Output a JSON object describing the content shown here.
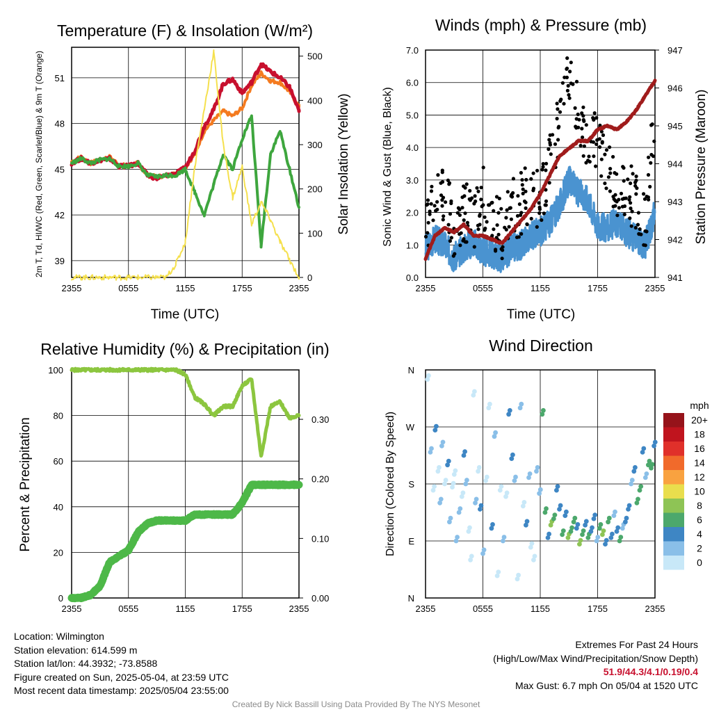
{
  "colors": {
    "temp_red": "#c8102e",
    "temp_orange": "#f47b20",
    "hiwc_green": "#3ea63e",
    "solar_yellow": "#f5e04d",
    "pressure_maroon": "#a01c1c",
    "sonic_blue": "#4a93d0",
    "gust_black": "#000000",
    "rh_green": "#8cc63f",
    "precip_green": "#4db848"
  },
  "chart_data": [
    {
      "type": "line",
      "title": "Temperature (F) & Insolation (W/m²)",
      "xlabel": "Time (UTC)",
      "ylabel": "2m T, Td, HI/WC (Red, Green, Scarlet/Blue) & 9m T (Orange)",
      "ylabel_right": "Solar Insolation (Yellow)",
      "x_ticks": [
        "2355",
        "0555",
        "1155",
        "1755",
        "2355"
      ],
      "y_ticks": [
        39,
        42,
        45,
        48,
        51
      ],
      "y2_ticks": [
        0,
        100,
        200,
        300,
        400,
        500
      ],
      "ylim": [
        37.9,
        53.0
      ],
      "y2lim": [
        0,
        520
      ],
      "xlim": [
        0,
        24
      ],
      "series": [
        {
          "axis": "left",
          "color": "#f47b20",
          "x": [
            0,
            1,
            2,
            3,
            4,
            5,
            6,
            7,
            8,
            9,
            10,
            11,
            12,
            13,
            14,
            15,
            16,
            17,
            18,
            19,
            20,
            21,
            22,
            23,
            24
          ],
          "values": [
            45.5,
            45.8,
            45.4,
            45.6,
            45.8,
            45.3,
            45.2,
            45.4,
            44.6,
            44.5,
            44.6,
            44.7,
            45.1,
            46.0,
            47.5,
            48.2,
            48.8,
            48.5,
            49.0,
            50.5,
            51.3,
            50.8,
            50.7,
            50.1,
            49.1
          ]
        },
        {
          "axis": "left",
          "color": "#c8102e",
          "x": [
            0,
            1,
            2,
            3,
            4,
            5,
            6,
            7,
            8,
            9,
            10,
            11,
            12,
            13,
            14,
            15,
            16,
            17,
            18,
            19,
            20,
            21,
            22,
            23,
            24
          ],
          "values": [
            45.4,
            45.7,
            45.4,
            45.6,
            45.7,
            45.2,
            45.2,
            45.4,
            44.6,
            44.4,
            44.6,
            44.7,
            45.1,
            46.2,
            47.8,
            48.9,
            50.6,
            50.9,
            50.0,
            50.7,
            51.9,
            51.4,
            51.0,
            50.4,
            48.8
          ]
        },
        {
          "axis": "left",
          "color": "#3ea63e",
          "x": [
            0,
            1,
            2,
            3,
            4,
            5,
            6,
            7,
            8,
            9,
            10,
            11,
            12,
            13,
            14,
            15,
            16,
            17,
            18,
            19,
            20,
            21,
            22,
            23,
            24
          ],
          "values": [
            45.4,
            45.7,
            45.4,
            45.6,
            45.7,
            45.2,
            45.2,
            45.4,
            44.6,
            44.5,
            44.6,
            44.6,
            45.0,
            43.5,
            42.0,
            44.0,
            46.0,
            45.0,
            47.0,
            48.5,
            40.0,
            46.0,
            47.5,
            45.0,
            42.5
          ]
        },
        {
          "axis": "right",
          "color": "#f5e04d",
          "x": [
            0,
            1,
            2,
            3,
            4,
            5,
            6,
            7,
            8,
            9,
            10,
            11,
            12,
            13,
            14,
            15,
            16,
            17,
            18,
            19,
            20,
            21,
            22,
            23,
            24
          ],
          "values": [
            0,
            0,
            0,
            0,
            0,
            0,
            0,
            0,
            0,
            0,
            0,
            30,
            80,
            250,
            380,
            510,
            300,
            180,
            250,
            120,
            170,
            130,
            80,
            40,
            0
          ]
        }
      ]
    },
    {
      "type": "line",
      "title": "Winds (mph) & Pressure (mb)",
      "xlabel": "Time (UTC)",
      "ylabel": "Sonic Wind & Gust (Blue, Black)",
      "ylabel_right": "Station Pressure (Maroon)",
      "x_ticks": [
        "2355",
        "0555",
        "1155",
        "1755",
        "2355"
      ],
      "y_ticks": [
        "0.0",
        "1.0",
        "2.0",
        "3.0",
        "4.0",
        "5.0",
        "6.0",
        "7.0"
      ],
      "y2_ticks": [
        941,
        942,
        943,
        944,
        945,
        946,
        947
      ],
      "ylim": [
        0,
        7
      ],
      "y2lim": [
        941,
        947
      ],
      "xlim": [
        0,
        24
      ],
      "series": [
        {
          "axis": "left",
          "color": "#4a93d0",
          "kind": "line",
          "x": [
            0,
            1,
            2,
            3,
            4,
            5,
            6,
            7,
            8,
            9,
            10,
            11,
            12,
            13,
            14,
            15,
            16,
            17,
            18,
            19,
            20,
            21,
            22,
            23,
            24
          ],
          "values": [
            0.9,
            1.2,
            1.0,
            0.6,
            0.9,
            1.1,
            0.8,
            0.7,
            0.6,
            0.9,
            1.0,
            1.3,
            1.4,
            1.7,
            2.2,
            3.0,
            2.6,
            2.4,
            1.6,
            1.5,
            1.7,
            1.4,
            1.2,
            1.0,
            2.0
          ]
        },
        {
          "axis": "left",
          "color": "#000000",
          "kind": "scatter",
          "x": [
            0,
            1,
            2,
            3,
            4,
            5,
            6,
            7,
            8,
            9,
            10,
            11,
            12,
            13,
            14,
            15,
            16,
            17,
            18,
            19,
            20,
            21,
            22,
            23,
            24
          ],
          "values": [
            1.6,
            2.2,
            2.8,
            1.5,
            2.0,
            1.7,
            2.5,
            1.8,
            1.4,
            2.0,
            2.3,
            2.8,
            2.4,
            3.5,
            4.8,
            6.6,
            4.9,
            4.4,
            4.0,
            3.6,
            2.5,
            2.8,
            2.3,
            1.8,
            4.9
          ]
        },
        {
          "axis": "right",
          "color": "#a01c1c",
          "kind": "line",
          "x": [
            0,
            1,
            2,
            3,
            4,
            5,
            6,
            7,
            8,
            9,
            10,
            11,
            12,
            13,
            14,
            15,
            16,
            17,
            18,
            19,
            20,
            21,
            22,
            23,
            24
          ],
          "values": [
            941.5,
            942.1,
            942.3,
            942.2,
            942.4,
            942.1,
            942.1,
            942.0,
            941.9,
            942.2,
            942.5,
            942.8,
            943.2,
            943.7,
            944.2,
            944.4,
            944.6,
            944.6,
            944.9,
            945.0,
            944.9,
            945.1,
            945.4,
            945.8,
            946.2
          ]
        }
      ]
    },
    {
      "type": "line",
      "title": "Relative Humidity (%) & Precipitation (in)",
      "xlabel": "",
      "ylabel": "Percent & Precipitation",
      "x_ticks": [
        "2355",
        "0555",
        "1155",
        "1755",
        "2355"
      ],
      "y_ticks": [
        0,
        20,
        40,
        60,
        80,
        100
      ],
      "y2_ticks": [
        "0.00",
        "0.10",
        "0.20",
        "0.30"
      ],
      "ylim": [
        0,
        100
      ],
      "y2lim": [
        0,
        0.383
      ],
      "xlim": [
        0,
        24
      ],
      "series": [
        {
          "axis": "left",
          "color": "#8cc63f",
          "x": [
            0,
            1,
            2,
            3,
            4,
            5,
            6,
            7,
            8,
            9,
            10,
            11,
            12,
            13,
            14,
            15,
            16,
            17,
            18,
            19,
            20,
            21,
            22,
            23,
            24
          ],
          "values": [
            100,
            100,
            100,
            100,
            100,
            100,
            100,
            100,
            100,
            100,
            100,
            100,
            98,
            88,
            85,
            80,
            84,
            84,
            93,
            96,
            62,
            84,
            86,
            79,
            80
          ]
        },
        {
          "axis": "right",
          "color": "#4db848",
          "x": [
            0,
            1,
            2,
            3,
            4,
            5,
            6,
            7,
            8,
            9,
            10,
            11,
            12,
            13,
            14,
            15,
            16,
            17,
            18,
            19,
            20,
            21,
            22,
            23,
            24
          ],
          "values": [
            0,
            0,
            0.005,
            0.02,
            0.06,
            0.07,
            0.08,
            0.11,
            0.125,
            0.13,
            0.13,
            0.13,
            0.13,
            0.14,
            0.14,
            0.14,
            0.14,
            0.14,
            0.16,
            0.19,
            0.19,
            0.19,
            0.19,
            0.19,
            0.19
          ]
        }
      ]
    },
    {
      "type": "scatter",
      "title": "Wind Direction",
      "xlabel": "",
      "ylabel": "Direction (Colored By Speed)",
      "x_ticks": [
        "2355",
        "0555",
        "1155",
        "1755",
        "2355"
      ],
      "y_ticks": [
        "N",
        "E",
        "S",
        "W",
        "N"
      ],
      "xlim": [
        0,
        24
      ],
      "ylim": [
        0,
        360
      ],
      "legend": {
        "title": "mph",
        "labels": [
          "20+",
          "18",
          "16",
          "14",
          "12",
          "10",
          "8",
          "6",
          "4",
          "2",
          "0"
        ],
        "colors": [
          "#96131a",
          "#c0141e",
          "#e0302a",
          "#f16a2b",
          "#f9a240",
          "#e9de4d",
          "#8ec455",
          "#4ca86c",
          "#3e86c4",
          "#8abfe8",
          "#c8e8f8"
        ]
      },
      "points": {
        "x": [
          0.2,
          0.5,
          0.8,
          1.0,
          1.3,
          1.5,
          1.7,
          2.0,
          2.3,
          2.5,
          2.8,
          3.0,
          3.2,
          3.5,
          3.8,
          4.0,
          4.2,
          4.5,
          4.7,
          5.0,
          5.2,
          5.5,
          5.7,
          6.0,
          6.3,
          6.6,
          6.9,
          7.2,
          7.5,
          7.8,
          8.1,
          8.4,
          8.7,
          9.0,
          9.3,
          9.6,
          9.9,
          10.2,
          10.5,
          10.8,
          11.0,
          11.3,
          11.6,
          11.9,
          12.2,
          12.5,
          12.8,
          13.1,
          13.4,
          13.7,
          14.0,
          14.3,
          14.6,
          14.9,
          15.2,
          15.5,
          15.8,
          16.1,
          16.4,
          16.7,
          17.0,
          17.3,
          17.6,
          17.9,
          18.2,
          18.5,
          18.8,
          19.1,
          19.4,
          19.7,
          20.0,
          20.3,
          20.6,
          20.9,
          21.2,
          21.5,
          21.8,
          22.1,
          22.4,
          22.7,
          23.0,
          23.3,
          23.6,
          23.9
        ],
        "dir": [
          345,
          230,
          170,
          265,
          200,
          150,
          240,
          180,
          210,
          120,
          175,
          195,
          90,
          135,
          160,
          225,
          180,
          105,
          60,
          320,
          150,
          200,
          140,
          70,
          185,
          300,
          110,
          255,
          35,
          170,
          90,
          160,
          290,
          220,
          185,
          30,
          300,
          145,
          115,
          190,
          80,
          60,
          200,
          165,
          290,
          135,
          95,
          115,
          125,
          170,
          140,
          100,
          130,
          95,
          105,
          120,
          110,
          85,
          100,
          115,
          95,
          105,
          125,
          90,
          110,
          100,
          85,
          120,
          95,
          130,
          105,
          90,
          110,
          120,
          140,
          180,
          200,
          150,
          170,
          230,
          190,
          210,
          205,
          240
        ],
        "speed": [
          0,
          1,
          0,
          2,
          0,
          1,
          1,
          0,
          2,
          1,
          0,
          0,
          1,
          1,
          0,
          2,
          1,
          0,
          0,
          0,
          1,
          0,
          2,
          1,
          0,
          0,
          2,
          1,
          0,
          0,
          1,
          0,
          2,
          2,
          1,
          0,
          1,
          0,
          2,
          1,
          0,
          0,
          1,
          1,
          3,
          3,
          2,
          4,
          3,
          2,
          2,
          3,
          2,
          4,
          3,
          3,
          2,
          4,
          3,
          2,
          3,
          2,
          2,
          1,
          3,
          4,
          2,
          3,
          2,
          1,
          2,
          3,
          1,
          2,
          2,
          1,
          2,
          3,
          3,
          2,
          1,
          3,
          3,
          2
        ]
      }
    }
  ],
  "footer": {
    "location": "Location: Wilmington",
    "elevation": "Station elevation: 614.599 m",
    "latlon": "Station lat/lon: 44.3932; -73.8588",
    "created": "Figure created on Sun, 2025-05-04, at 23:59 UTC",
    "recent": "Most recent data timestamp: 2025/05/04 23:55:00",
    "extremes_title": "Extremes For Past 24 Hours",
    "extremes_sub": "(High/Low/Max Wind/Precipitation/Snow Depth)",
    "extremes_values": "51.9/44.3/4.1/0.19/0.4",
    "max_gust": "Max Gust: 6.7 mph On 05/04 at 1520 UTC",
    "credit": "Created By Nick Bassill Using Data Provided By The NYS Mesonet"
  }
}
